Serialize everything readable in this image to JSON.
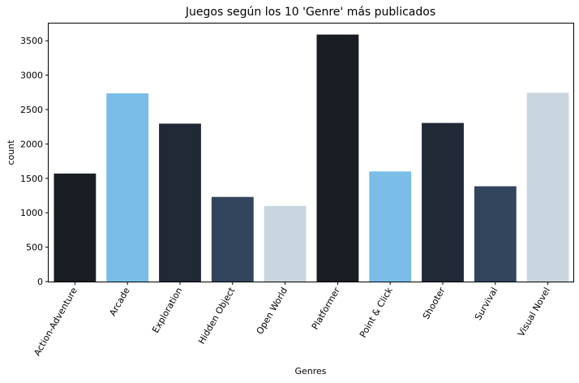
{
  "chart_data": {
    "type": "bar",
    "title": "Juegos según los 10 'Genre' más publicados",
    "xlabel": "Genres",
    "ylabel": "count",
    "categories": [
      "Action-Adventure",
      "Arcade",
      "Exploration",
      "Hidden Object",
      "Open World",
      "Platformer",
      "Point & Click",
      "Shooter",
      "Survival",
      "Visual Novel"
    ],
    "values": [
      1570,
      2735,
      2295,
      1230,
      1100,
      3590,
      1600,
      2305,
      1385,
      2745
    ],
    "colors": [
      "#1b1d24",
      "#79bde8",
      "#212937",
      "#32455c",
      "#c9d6df",
      "#1b1d24",
      "#79bde8",
      "#212937",
      "#32455c",
      "#c9d6df"
    ],
    "ylim": [
      0,
      3750
    ],
    "yticks": [
      0,
      500,
      1000,
      1500,
      2000,
      2500,
      3000,
      3500
    ],
    "grid": false,
    "legend": "none"
  }
}
